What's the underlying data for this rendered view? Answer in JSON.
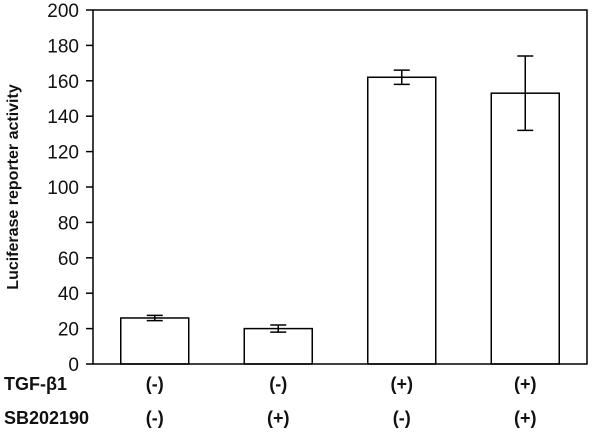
{
  "chart_data": {
    "type": "bar",
    "title": "",
    "xlabel": "",
    "ylabel": "Luciferase reporter activity",
    "ylim": [
      0,
      200
    ],
    "yticks": [
      0,
      20,
      40,
      60,
      80,
      100,
      120,
      140,
      160,
      180,
      200
    ],
    "grid": false,
    "legend": "none",
    "bar_fill": "#ffffff",
    "bar_stroke": "#000000",
    "values": [
      26,
      20,
      162,
      153
    ],
    "errors": [
      1.5,
      2,
      4,
      21
    ],
    "condition_rows": [
      {
        "label": "TGF-β1",
        "values": [
          "(-)",
          "(-)",
          "(+)",
          "(+)"
        ]
      },
      {
        "label": "SB202190",
        "values": [
          "(-)",
          "(+)",
          "(-)",
          "(+)"
        ]
      }
    ]
  }
}
